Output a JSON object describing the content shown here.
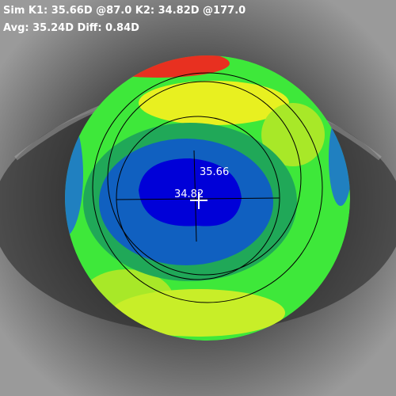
{
  "header": {
    "line1": "Sim K1: 35.66D @87.0 K2: 34.82D @177.0",
    "line2": "Avg: 35.24D Diff: 0.84D"
  },
  "map_labels": {
    "steep": "35.66",
    "flat": "34.82"
  }
}
